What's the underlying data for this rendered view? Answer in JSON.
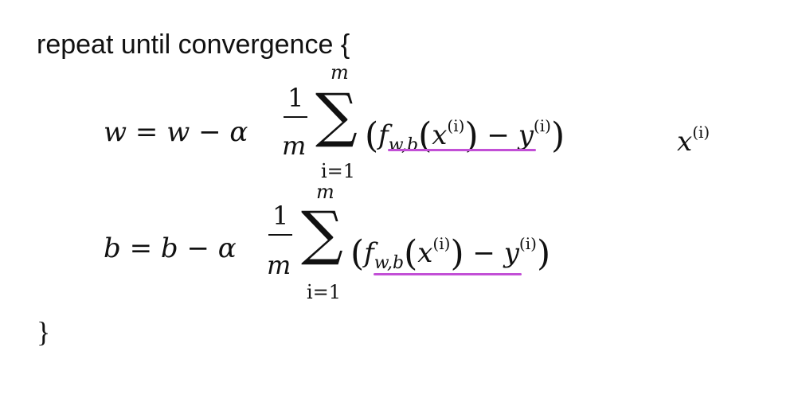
{
  "heading": {
    "text": "repeat until convergence",
    "open_brace": "{"
  },
  "closing_brace": "}",
  "equation_w": {
    "lhs": "w = w − α",
    "frac_numerator": "1",
    "frac_denominator": "m",
    "sum_symbol": "∑",
    "sum_upper": "m",
    "sum_lower": "i=1",
    "open_paren": "(",
    "f": "f",
    "f_subscript": "w,b",
    "x": "x",
    "x_superscript": "(i)",
    "minus_y": " − y",
    "y_superscript": "(i)",
    "close_paren": ")",
    "trailing_x": "x",
    "trailing_x_superscript": "(i)"
  },
  "equation_b": {
    "lhs": "b = b − α",
    "frac_numerator": "1",
    "frac_denominator": "m",
    "sum_symbol": "∑",
    "sum_upper": "m",
    "sum_lower": "i=1",
    "open_paren": "(",
    "f": "f",
    "f_subscript": "w,b",
    "x": "x",
    "x_superscript": "(i)",
    "minus_y": " − y",
    "y_superscript": "(i)",
    "close_paren": ")"
  },
  "colors": {
    "text": "#111111",
    "highlight_underline": "#c24fd6",
    "background": "#ffffff"
  }
}
